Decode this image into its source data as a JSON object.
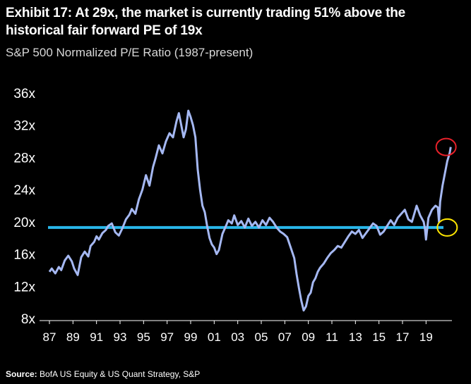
{
  "header": {
    "title": "Exhibit 17: At 29x, the market is currently trading 51% above the historical fair forward  PE of 19x",
    "subtitle": "S&P 500 Normalized P/E Ratio (1987-present)"
  },
  "footer": {
    "source_label": "Source:",
    "source_text": " BofA US Equity  & US  Quant Strategy, S&P"
  },
  "chart_data": {
    "type": "line",
    "title": "Exhibit 17: At 29x, the market is currently trading 51% above the historical fair forward  PE of 19x",
    "subtitle": "S&P 500 Normalized P/E Ratio (1987-present)",
    "xlabel": "",
    "ylabel": "",
    "x_tick_labels": [
      "87",
      "89",
      "91",
      "93",
      "95",
      "97",
      "99",
      "01",
      "03",
      "05",
      "07",
      "09",
      "11",
      "13",
      "15",
      "17",
      "19"
    ],
    "y_tick_labels": [
      "36x",
      "32x",
      "28x",
      "24x",
      "20x",
      "16x",
      "12x",
      "8x"
    ],
    "ylim": [
      8,
      36
    ],
    "xlim": [
      1987,
      2021.2
    ],
    "grid": false,
    "line_color": "#a5b8f2",
    "reference_line": {
      "value": 19.3,
      "color": "#29b7ea"
    },
    "annotations": [
      {
        "shape": "circle",
        "color": "#e8212a",
        "x": 2020.7,
        "y": 29.3
      },
      {
        "shape": "circle",
        "color": "#ffe600",
        "x": 2020.8,
        "y": 19.3
      }
    ],
    "series": [
      {
        "x": [
          1987.0,
          1987.2,
          1987.5,
          1987.8,
          1988.0,
          1988.3,
          1988.6,
          1988.9,
          1989.1,
          1989.4,
          1989.7,
          1990.0,
          1990.3,
          1990.5,
          1990.8,
          1991.0,
          1991.2,
          1991.5,
          1991.8,
          1992.0,
          1992.3,
          1992.6,
          1992.9,
          1993.2,
          1993.5,
          1993.8,
          1994.0,
          1994.3,
          1994.6,
          1994.9,
          1995.2,
          1995.5,
          1995.8,
          1996.0,
          1996.3,
          1996.6,
          1996.9,
          1997.2,
          1997.5,
          1997.8,
          1998.0,
          1998.2,
          1998.4,
          1998.6,
          1998.8,
          1999.0,
          1999.2,
          1999.4,
          1999.6,
          1999.8,
          2000.0,
          2000.2,
          2000.4,
          2000.6,
          2000.8,
          2001.0,
          2001.2,
          2001.4,
          2001.7,
          2002.0,
          2002.2,
          2002.5,
          2002.7,
          2003.0,
          2003.3,
          2003.6,
          2003.9,
          2004.2,
          2004.5,
          2004.8,
          2005.1,
          2005.4,
          2005.7,
          2006.0,
          2006.3,
          2006.6,
          2006.9,
          2007.2,
          2007.5,
          2007.8,
          2008.0,
          2008.2,
          2008.4,
          2008.6,
          2008.8,
          2009.0,
          2009.2,
          2009.4,
          2009.6,
          2009.8,
          2010.0,
          2010.3,
          2010.6,
          2010.9,
          2011.2,
          2011.5,
          2011.8,
          2012.1,
          2012.4,
          2012.7,
          2013.0,
          2013.3,
          2013.6,
          2013.9,
          2014.2,
          2014.5,
          2014.8,
          2015.1,
          2015.4,
          2015.7,
          2016.0,
          2016.3,
          2016.6,
          2016.9,
          2017.2,
          2017.5,
          2017.8,
          2018.0,
          2018.2,
          2018.5,
          2018.8,
          2018.9,
          2019.0,
          2019.2,
          2019.5,
          2019.8,
          2020.0,
          2020.1,
          2020.2,
          2020.4,
          2020.6,
          2020.8,
          2021.0,
          2021.1
        ],
        "values": [
          13.8,
          14.2,
          13.6,
          14.4,
          14.0,
          15.2,
          15.8,
          15.1,
          14.2,
          13.4,
          15.6,
          16.3,
          15.7,
          17.0,
          17.5,
          18.2,
          17.8,
          18.6,
          19.0,
          19.5,
          19.8,
          18.7,
          18.3,
          19.2,
          20.3,
          20.9,
          21.6,
          21.0,
          22.8,
          24.0,
          25.8,
          24.5,
          26.8,
          27.8,
          29.5,
          28.5,
          30.0,
          31.0,
          30.5,
          32.5,
          33.5,
          32.0,
          30.5,
          31.5,
          33.8,
          33.0,
          32.0,
          30.5,
          26.5,
          24.0,
          22.0,
          21.2,
          19.5,
          18.0,
          17.2,
          16.8,
          16.0,
          16.5,
          18.5,
          19.5,
          20.2,
          19.8,
          20.8,
          19.6,
          20.1,
          19.3,
          20.4,
          19.5,
          20.0,
          19.3,
          20.2,
          19.6,
          20.5,
          20.0,
          19.3,
          18.8,
          18.5,
          18.1,
          16.8,
          15.5,
          13.5,
          11.8,
          10.2,
          9.0,
          9.5,
          10.8,
          11.2,
          12.5,
          13.0,
          13.8,
          14.3,
          14.8,
          15.5,
          16.1,
          16.5,
          17.0,
          16.8,
          17.5,
          18.2,
          18.8,
          18.5,
          19.0,
          18.0,
          18.6,
          19.2,
          19.8,
          19.5,
          18.4,
          18.8,
          19.5,
          20.2,
          19.6,
          20.5,
          21.0,
          21.5,
          20.3,
          20.0,
          21.0,
          22.0,
          20.8,
          20.0,
          19.2,
          17.8,
          20.5,
          21.5,
          22.0,
          21.8,
          20.0,
          22.5,
          24.5,
          26.0,
          27.5,
          28.5,
          29.3
        ]
      }
    ]
  }
}
